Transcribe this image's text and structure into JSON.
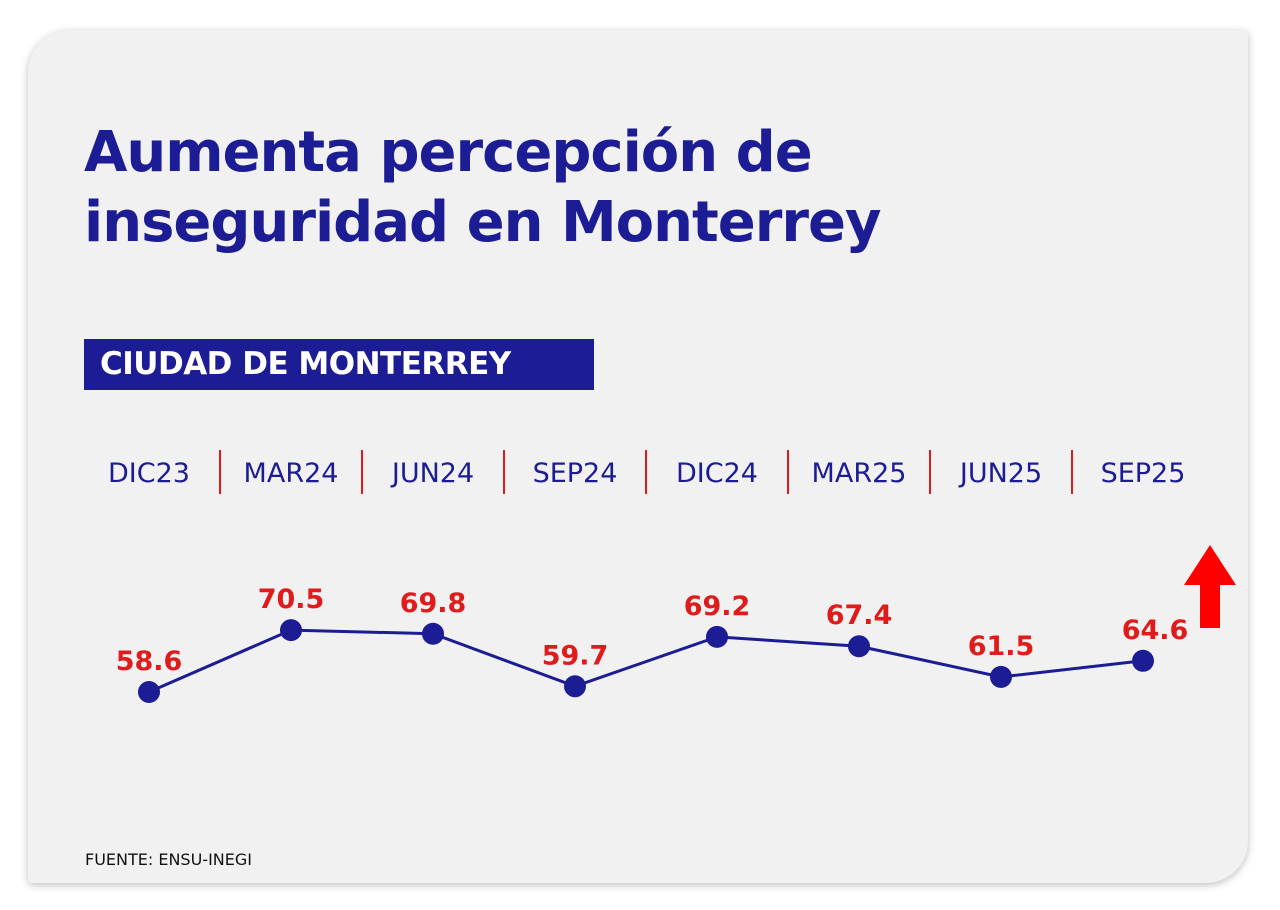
{
  "title_line1": "Aumenta percepción de",
  "title_line2": "inseguridad en Monterrey",
  "badge": "CIUDAD DE MONTERREY",
  "source": "FUENTE: ENSU-INEGI",
  "colors": {
    "primary": "#1c1c94",
    "accent": "#e01b1b",
    "background": "#f1f1f1"
  },
  "chart_data": {
    "type": "line",
    "title": "Aumenta percepción de inseguridad en Monterrey",
    "subtitle": "CIUDAD DE MONTERREY",
    "categories": [
      "DIC23",
      "MAR24",
      "JUN24",
      "SEP24",
      "DIC24",
      "MAR25",
      "JUN25",
      "SEP25"
    ],
    "values": [
      58.6,
      70.5,
      69.8,
      59.7,
      69.2,
      67.4,
      61.5,
      64.6
    ],
    "value_labels": [
      "58.6",
      "70.5",
      "69.8",
      "59.7",
      "69.2",
      "67.4",
      "61.5",
      "64.6"
    ],
    "xlabel": "",
    "ylabel": "",
    "grid": false,
    "annotations": [
      "up-arrow-icon"
    ]
  }
}
